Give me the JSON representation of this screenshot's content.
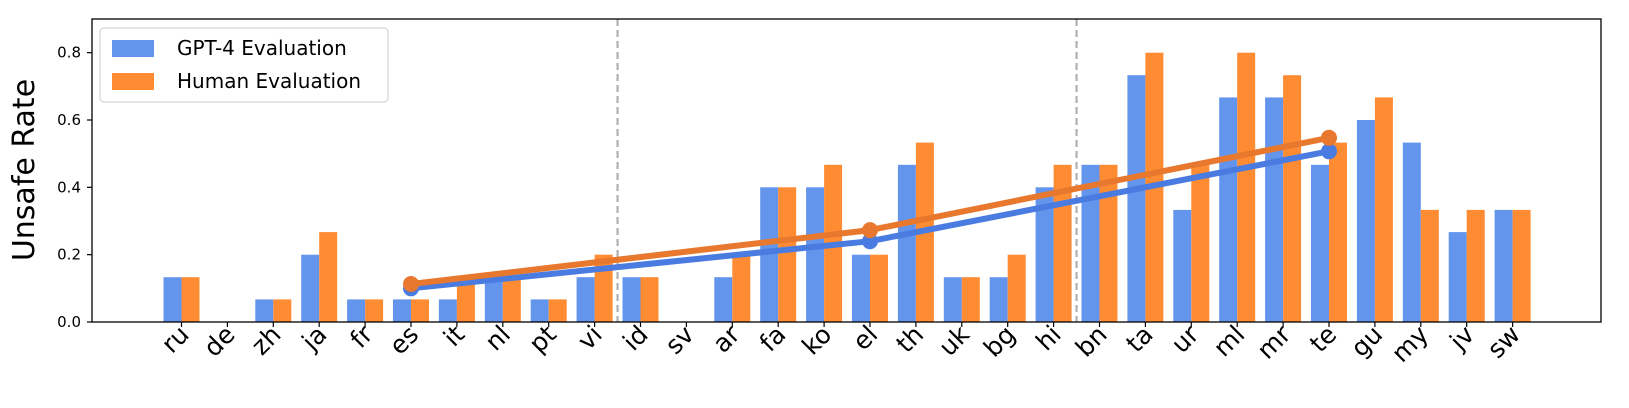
{
  "chart_data": {
    "type": "bar",
    "title": "",
    "xlabel": "",
    "ylabel": "Unsafe Rate",
    "ylim": [
      0,
      0.9
    ],
    "yticks": [
      0.0,
      0.2,
      0.4,
      0.6,
      0.8
    ],
    "ytick_labels": [
      "0.0",
      "0.2",
      "0.4",
      "0.6",
      "0.8"
    ],
    "grid": false,
    "legend_position": "top-left",
    "categories": [
      "ru",
      "de",
      "zh",
      "ja",
      "fr",
      "es",
      "it",
      "nl",
      "pt",
      "vi",
      "id",
      "sv",
      "ar",
      "fa",
      "ko",
      "el",
      "th",
      "uk",
      "bg",
      "hi",
      "bn",
      "ta",
      "ur",
      "ml",
      "mr",
      "te",
      "gu",
      "my",
      "jv",
      "sw"
    ],
    "series": [
      {
        "name": "GPT-4 Evaluation",
        "color": "#6495ED",
        "values": [
          0.133,
          0,
          0.067,
          0.2,
          0.067,
          0.067,
          0.067,
          0.133,
          0.067,
          0.133,
          0.133,
          0,
          0.133,
          0.4,
          0.4,
          0.2,
          0.467,
          0.133,
          0.133,
          0.4,
          0.467,
          0.733,
          0.333,
          0.667,
          0.667,
          0.467,
          0.6,
          0.533,
          0.267,
          0.333
        ]
      },
      {
        "name": "Human Evaluation",
        "color": "#FF8C33",
        "values": [
          0.133,
          0,
          0.067,
          0.267,
          0.067,
          0.067,
          0.133,
          0.133,
          0.067,
          0.2,
          0.133,
          0,
          0.2,
          0.4,
          0.467,
          0.2,
          0.533,
          0.133,
          0.2,
          0.467,
          0.467,
          0.8,
          0.467,
          0.8,
          0.733,
          0.533,
          0.667,
          0.333,
          0.333,
          0.333
        ]
      }
    ],
    "group_dividers_after": [
      "vi",
      "hi"
    ],
    "trend_lines": [
      {
        "series": "GPT-4 Evaluation",
        "color": "#4A7BE0",
        "points": [
          {
            "category": "es",
            "value": 0.1
          },
          {
            "category": "el",
            "value": 0.24
          },
          {
            "category": "te",
            "value": 0.507
          }
        ]
      },
      {
        "series": "Human Evaluation",
        "color": "#E8782E",
        "points": [
          {
            "category": "es",
            "value": 0.113
          },
          {
            "category": "el",
            "value": 0.273
          },
          {
            "category": "te",
            "value": 0.547
          }
        ]
      }
    ]
  }
}
